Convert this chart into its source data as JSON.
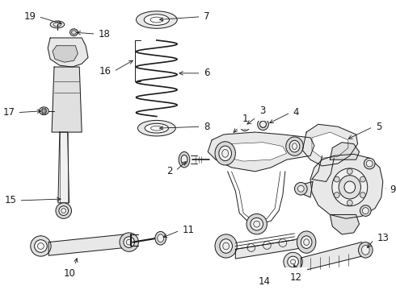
{
  "bg_color": "#ffffff",
  "line_color": "#1a1a1a",
  "fig_width": 4.9,
  "fig_height": 3.6,
  "dpi": 100,
  "label_fs": 8.5,
  "lw": 0.7
}
